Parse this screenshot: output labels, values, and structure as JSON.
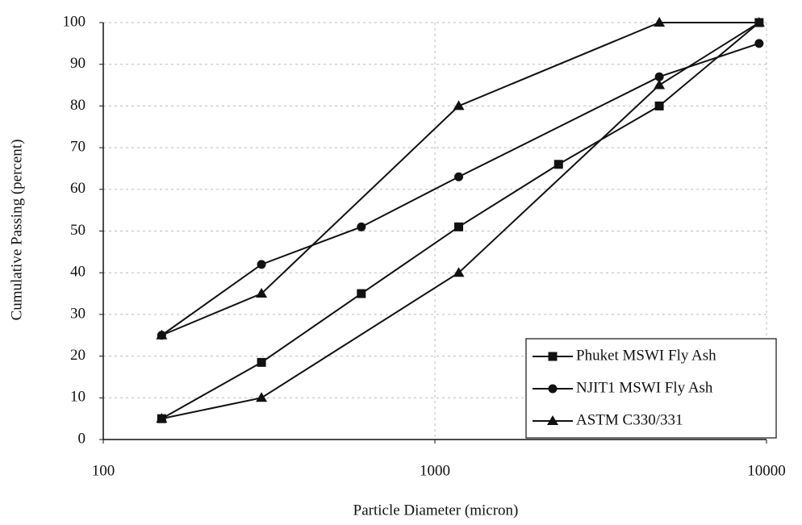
{
  "chart_data": {
    "type": "line",
    "x_label": "Particle Diameter (micron)",
    "y_label": "Cumulative Passing (percent)",
    "xlog": true,
    "grid": true,
    "legend": "lower right",
    "xlim": [
      100,
      10000
    ],
    "xticks": [
      100,
      1000,
      10000
    ],
    "ylim": [
      0,
      100
    ],
    "yticks": [
      0,
      10,
      20,
      30,
      40,
      50,
      60,
      70,
      80,
      90,
      100
    ],
    "series": [
      {
        "name": "Phuket MSWI Fly Ash",
        "color": "#111111",
        "marker": "square",
        "x": [
          150,
          300,
          600,
          1180,
          2360,
          4750,
          9500
        ],
        "values": [
          5,
          18.5,
          35,
          51,
          66,
          80,
          100
        ]
      },
      {
        "name": "NJIT1 MSWI Fly Ash",
        "color": "#111111",
        "marker": "circle",
        "x": [
          150,
          300,
          600,
          1180,
          4750,
          9500
        ],
        "values": [
          25,
          42,
          51,
          63,
          87,
          95
        ]
      },
      {
        "name": "ASTM C330/331",
        "color": "#111111",
        "marker": "triangle",
        "x": [
          150,
          300,
          1180,
          4750,
          9500,
          4750,
          1180,
          300,
          150
        ],
        "values": [
          25,
          35,
          80,
          100,
          100,
          85,
          40,
          10,
          5
        ]
      }
    ]
  }
}
